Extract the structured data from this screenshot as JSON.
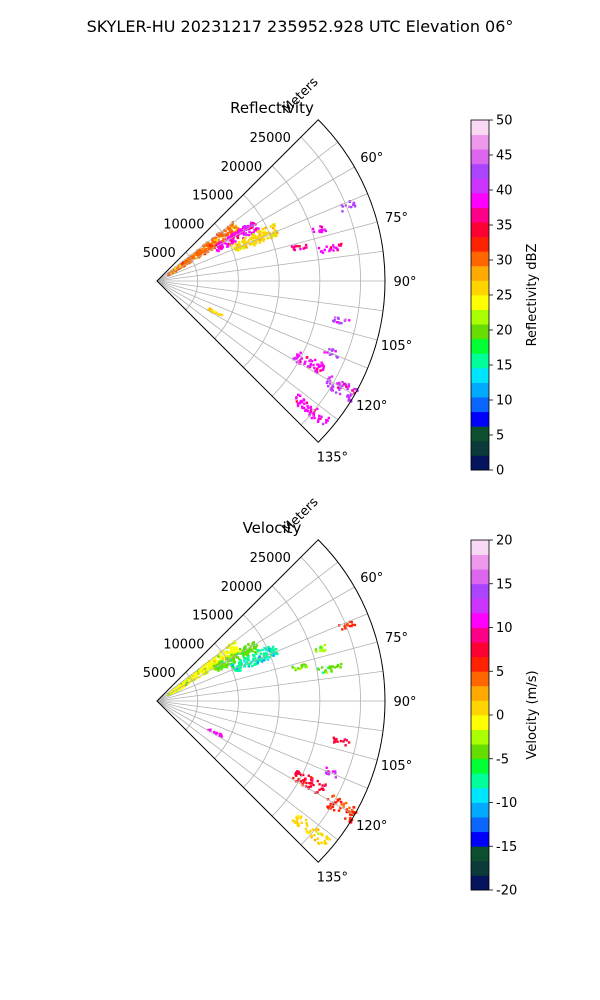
{
  "figure": {
    "suptitle": "SKYLER-HU  20231217  235952.928 UTC Elevation 06°"
  },
  "chart_data": [
    {
      "type": "heatmap",
      "kind": "ppi-sector",
      "title": "Reflectivity",
      "range_label": "Meters",
      "range_ticks": [
        "5000",
        "10000",
        "15000",
        "20000",
        "25000"
      ],
      "range_values": [
        5000,
        10000,
        15000,
        20000,
        25000
      ],
      "max_range": 28000,
      "azimuth_ticks": [
        "60°",
        "75°",
        "90°",
        "105°",
        "120°",
        "135°"
      ],
      "azimuth_values": [
        60,
        75,
        90,
        105,
        120,
        135
      ],
      "sector": [
        45,
        135
      ],
      "grid": true,
      "colorbar": {
        "label": "Reflectivity dBZ",
        "min": 0,
        "max": 50,
        "ticks": [
          "0",
          "5",
          "10",
          "15",
          "20",
          "25",
          "30",
          "35",
          "40",
          "45",
          "50"
        ],
        "colors": [
          "#05145c",
          "#0a3a3a",
          "#0b4f30",
          "#0000ff",
          "#0a66ff",
          "#00aaff",
          "#00e5ff",
          "#00ff99",
          "#00ff33",
          "#66dd00",
          "#aaff00",
          "#ffff00",
          "#ffd400",
          "#ffaa00",
          "#ff6600",
          "#ff2200",
          "#ff0033",
          "#ff0088",
          "#ff00ff",
          "#cc33ff",
          "#aa44ff",
          "#dd66ee",
          "#ee99ee",
          "#f8d8f4"
        ]
      },
      "echoes": [
        {
          "az": 55,
          "r0": 1500,
          "r1": 12000,
          "spread": 4,
          "level": 14
        },
        {
          "az": 60,
          "r0": 8000,
          "r1": 14000,
          "spread": 3,
          "level": 18
        },
        {
          "az": 66,
          "r0": 10000,
          "r1": 16000,
          "spread": 3,
          "level": 12
        },
        {
          "az": 72,
          "r0": 20000,
          "r1": 22000,
          "spread": 1,
          "level": 18
        },
        {
          "az": 76,
          "r0": 17000,
          "r1": 19000,
          "spread": 1,
          "level": 17
        },
        {
          "az": 79,
          "r0": 20000,
          "r1": 23000,
          "spread": 1,
          "level": 18
        },
        {
          "az": 68,
          "r0": 24000,
          "r1": 26000,
          "spread": 1,
          "level": 20
        },
        {
          "az": 102,
          "r0": 22000,
          "r1": 24000,
          "spread": 1,
          "level": 20
        },
        {
          "az": 118,
          "r0": 19000,
          "r1": 23000,
          "spread": 2,
          "level": 18
        },
        {
          "az": 120,
          "r0": 24000,
          "r1": 28000,
          "spread": 2,
          "level": 19
        },
        {
          "az": 130,
          "r0": 22000,
          "r1": 27000,
          "spread": 1.5,
          "level": 18
        },
        {
          "az": 112,
          "r0": 22000,
          "r1": 24000,
          "spread": 1,
          "level": 20
        },
        {
          "az": 118,
          "r0": 7000,
          "r1": 9000,
          "spread": 1,
          "level": 12
        }
      ]
    },
    {
      "type": "heatmap",
      "kind": "ppi-sector",
      "title": "Velocity",
      "range_label": "Meters",
      "range_ticks": [
        "5000",
        "10000",
        "15000",
        "20000",
        "25000"
      ],
      "range_values": [
        5000,
        10000,
        15000,
        20000,
        25000
      ],
      "max_range": 28000,
      "azimuth_ticks": [
        "60°",
        "75°",
        "90°",
        "105°",
        "120°",
        "135°"
      ],
      "azimuth_values": [
        60,
        75,
        90,
        105,
        120,
        135
      ],
      "sector": [
        45,
        135
      ],
      "grid": true,
      "colorbar": {
        "label": "Velocity (m/s)",
        "min": -20,
        "max": 20,
        "ticks": [
          "-20",
          "-15",
          "-10",
          "-5",
          "0",
          "5",
          "10",
          "15",
          "20"
        ],
        "colors": [
          "#05145c",
          "#0a3a3a",
          "#0b4f30",
          "#0000ff",
          "#0a66ff",
          "#00aaff",
          "#00e5ff",
          "#00ff99",
          "#00ff33",
          "#66dd00",
          "#aaff00",
          "#ffff00",
          "#ffd400",
          "#ffaa00",
          "#ff6600",
          "#ff2200",
          "#ff0033",
          "#ff0088",
          "#ff00ff",
          "#cc33ff",
          "#aa44ff",
          "#dd66ee",
          "#ee99ee",
          "#f8d8f4"
        ]
      },
      "echoes": [
        {
          "az": 55,
          "r0": 1500,
          "r1": 12000,
          "spread": 4,
          "level": 11
        },
        {
          "az": 60,
          "r0": 8000,
          "r1": 14000,
          "spread": 3,
          "level": 9
        },
        {
          "az": 66,
          "r0": 10000,
          "r1": 16000,
          "spread": 3,
          "level": 7
        },
        {
          "az": 72,
          "r0": 20000,
          "r1": 22000,
          "spread": 1,
          "level": 10
        },
        {
          "az": 76,
          "r0": 17000,
          "r1": 19000,
          "spread": 1,
          "level": 9
        },
        {
          "az": 79,
          "r0": 20000,
          "r1": 23000,
          "spread": 1,
          "level": 9
        },
        {
          "az": 68,
          "r0": 24000,
          "r1": 26000,
          "spread": 1,
          "level": 15
        },
        {
          "az": 102,
          "r0": 22000,
          "r1": 24000,
          "spread": 1,
          "level": 16
        },
        {
          "az": 118,
          "r0": 19000,
          "r1": 23000,
          "spread": 2,
          "level": 16
        },
        {
          "az": 120,
          "r0": 24000,
          "r1": 28000,
          "spread": 2,
          "level": 15
        },
        {
          "az": 130,
          "r0": 22000,
          "r1": 27000,
          "spread": 1.5,
          "level": 12
        },
        {
          "az": 112,
          "r0": 22000,
          "r1": 24000,
          "spread": 1,
          "level": 19
        },
        {
          "az": 118,
          "r0": 7000,
          "r1": 9000,
          "spread": 1,
          "level": 18
        }
      ]
    }
  ]
}
